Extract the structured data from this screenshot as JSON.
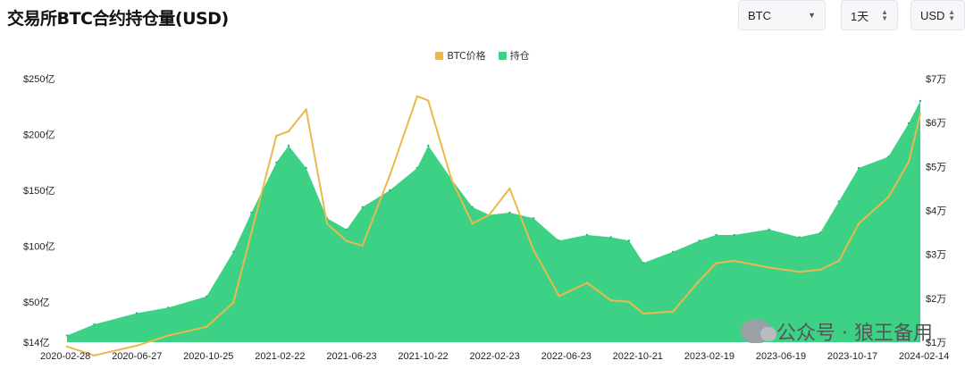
{
  "title": "交易所BTC合约持仓量(USD)",
  "controls": {
    "asset": "BTC",
    "interval": "1天",
    "currency": "USD"
  },
  "colors": {
    "price": "#e9b949",
    "oi": "#3dd186"
  },
  "watermark": "公众号 · 狼王备用",
  "chart_data": {
    "type": "area",
    "legend": [
      "BTC价格",
      "持仓"
    ],
    "legend_position": "top-center",
    "grid": false,
    "x_ticks": [
      "2020-02-28",
      "2020-06-27",
      "2020-10-25",
      "2021-02-22",
      "2021-06-23",
      "2021-10-22",
      "2022-02-23",
      "2022-06-23",
      "2022-10-21",
      "2023-02-19",
      "2023-06-19",
      "2023-10-17",
      "2024-02-14"
    ],
    "y_left_ticks": [
      "$14亿",
      "$50亿",
      "$100亿",
      "$150亿",
      "$200亿",
      "$250亿"
    ],
    "y_left_range": [
      14,
      250
    ],
    "y_right_ticks": [
      "$1万",
      "$2万",
      "$3万",
      "$4万",
      "$5万",
      "$6万",
      "$7万"
    ],
    "y_right_range": [
      10000,
      70000
    ],
    "x": [
      "2020-02-28",
      "2020-04-15",
      "2020-06-27",
      "2020-08-20",
      "2020-10-25",
      "2020-12-10",
      "2021-01-10",
      "2021-02-22",
      "2021-03-15",
      "2021-04-14",
      "2021-05-20",
      "2021-06-23",
      "2021-07-20",
      "2021-09-05",
      "2021-10-22",
      "2021-11-10",
      "2021-12-20",
      "2022-01-25",
      "2022-02-23",
      "2022-03-30",
      "2022-05-10",
      "2022-06-23",
      "2022-08-10",
      "2022-09-20",
      "2022-10-21",
      "2022-11-15",
      "2023-01-05",
      "2023-02-19",
      "2023-03-20",
      "2023-04-20",
      "2023-06-19",
      "2023-08-10",
      "2023-09-15",
      "2023-10-17",
      "2023-11-20",
      "2024-01-10",
      "2024-02-14",
      "2024-03-05"
    ],
    "series": [
      {
        "name": "持仓",
        "values": [
          20,
          30,
          40,
          45,
          55,
          95,
          130,
          175,
          190,
          170,
          125,
          115,
          135,
          150,
          170,
          190,
          160,
          135,
          128,
          130,
          125,
          105,
          110,
          108,
          105,
          85,
          95,
          105,
          110,
          110,
          115,
          108,
          112,
          140,
          170,
          180,
          210,
          230
        ]
      },
      {
        "name": "BTC价格",
        "values": [
          9000,
          7000,
          9200,
          11500,
          13500,
          19000,
          35000,
          57000,
          58000,
          63000,
          37000,
          33000,
          32000,
          48000,
          66000,
          65000,
          47000,
          37000,
          39000,
          45000,
          31000,
          20500,
          23500,
          19500,
          19200,
          16500,
          17000,
          24000,
          28000,
          28500,
          27000,
          26000,
          26500,
          28500,
          37000,
          43000,
          51000,
          62000
        ]
      }
    ]
  }
}
